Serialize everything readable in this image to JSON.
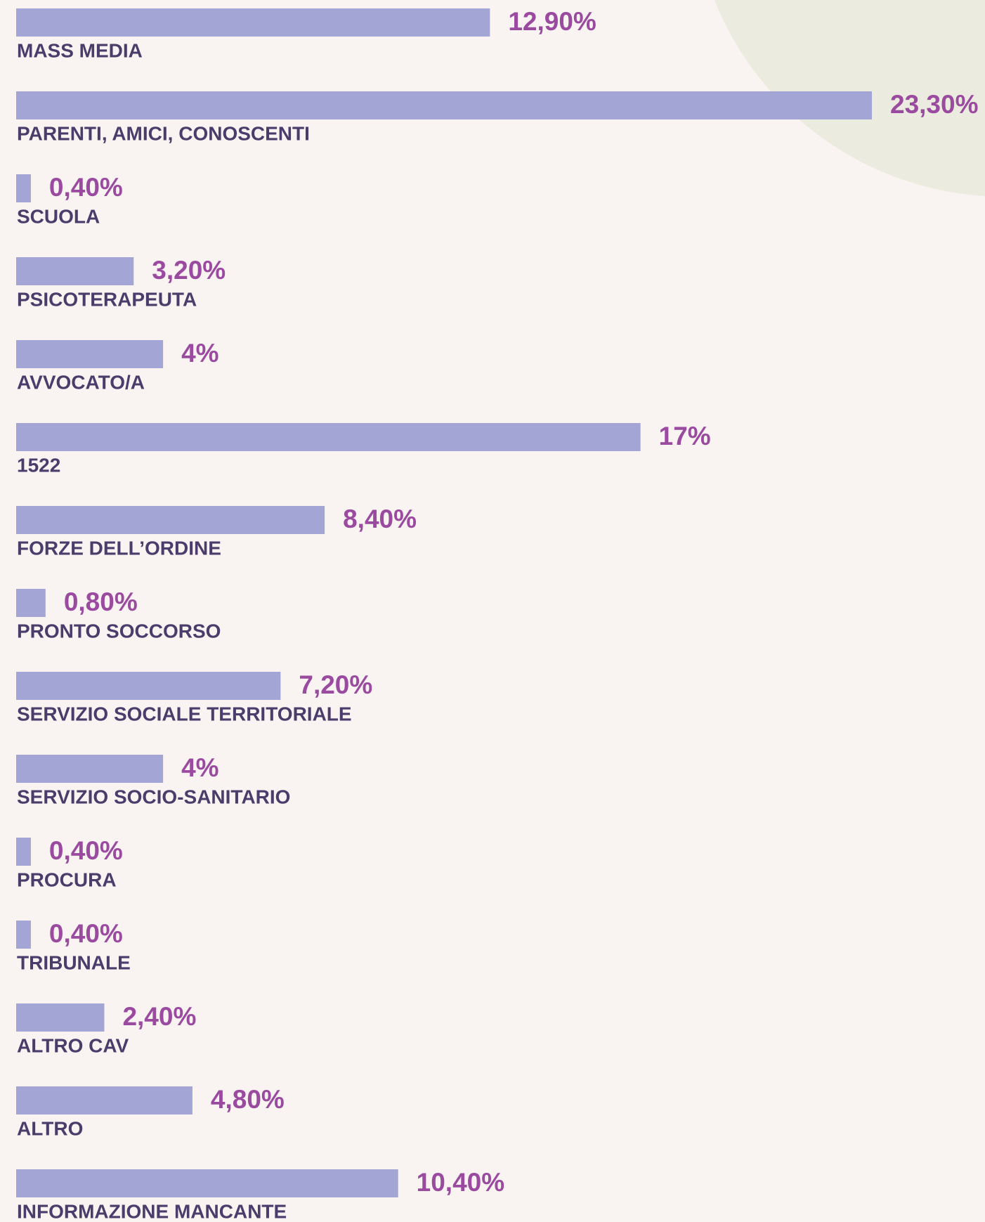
{
  "chart_data": {
    "type": "bar",
    "orientation": "horizontal",
    "categories": [
      "MASS MEDIA",
      "PARENTI, AMICI, CONOSCENTI",
      "SCUOLA",
      "PSICOTERAPEUTA",
      "AVVOCATO/A",
      "1522",
      "FORZE DELL’ORDINE",
      "PRONTO SOCCORSO",
      "SERVIZIO SOCIALE TERRITORIALE",
      "SERVIZIO SOCIO-SANITARIO",
      "PROCURA",
      "TRIBUNALE",
      "ALTRO CAV",
      "ALTRO",
      "INFORMAZIONE MANCANTE"
    ],
    "values": [
      12.9,
      23.3,
      0.4,
      3.2,
      4,
      17,
      8.4,
      0.8,
      7.2,
      4,
      0.4,
      0.4,
      2.4,
      4.8,
      10.4
    ],
    "value_labels": [
      "12,90%",
      "23,30%",
      "0,40%",
      "3,20%",
      "4%",
      "17%",
      "8,40%",
      "0,80%",
      "7,20%",
      "4%",
      "0,40%",
      "0,40%",
      "2,40%",
      "4,80%",
      "10,40%"
    ],
    "color": "#a3a6d4"
  }
}
